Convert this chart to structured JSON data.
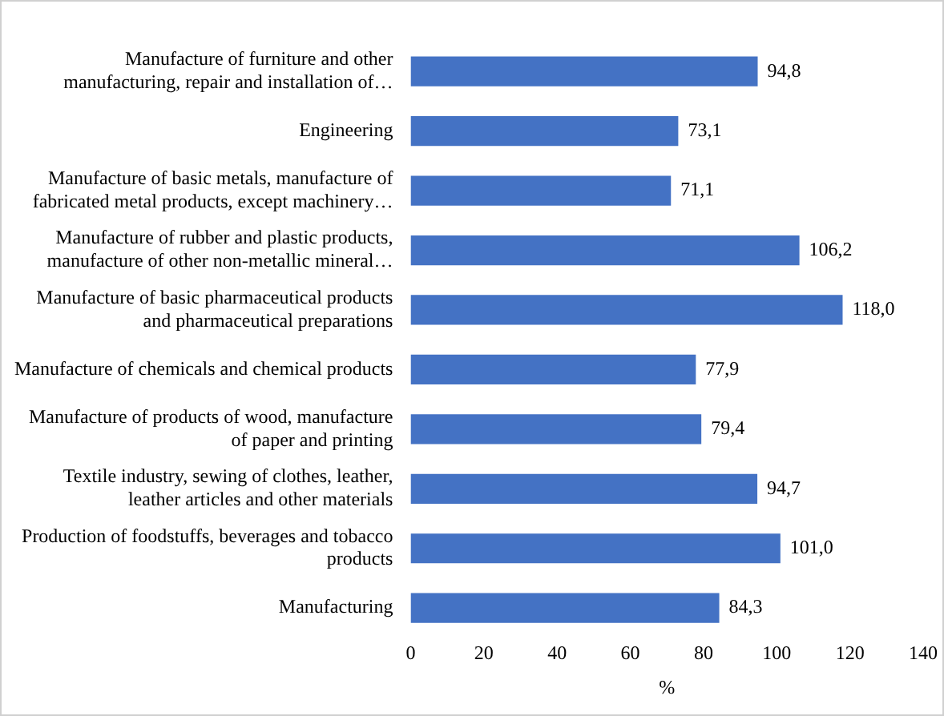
{
  "chart_data": {
    "type": "bar",
    "orientation": "horizontal",
    "xlabel": "%",
    "categories": [
      "Manufacture of furniture and other manufacturing, repair and installation of…",
      "Engineering",
      "Manufacture of basic metals, manufacture of fabricated metal products, except machinery…",
      "Manufacture of rubber and plastic products, manufacture of other non-metallic mineral…",
      "Manufacture of basic pharmaceutical products and pharmaceutical preparations",
      "Manufacture of chemicals and chemical products",
      "Manufacture of products of wood, manufacture of paper and printing",
      "Textile industry, sewing of clothes, leather, leather articles and other materials",
      "Production of foodstuffs, beverages and tobacco products",
      "Manufacturing"
    ],
    "values": [
      94.8,
      73.1,
      71.1,
      106.2,
      118.0,
      77.9,
      79.4,
      94.7,
      101.0,
      84.3
    ],
    "value_labels": [
      "94,8",
      "73,1",
      "71,1",
      "106,2",
      "118,0",
      "77,9",
      "79,4",
      "94,7",
      "101,0",
      "84,3"
    ],
    "color": "#4472c4",
    "xlim": [
      0,
      140
    ],
    "xticks": [
      0,
      20,
      40,
      60,
      80,
      100,
      120,
      140
    ],
    "grid": false,
    "legend": false
  }
}
